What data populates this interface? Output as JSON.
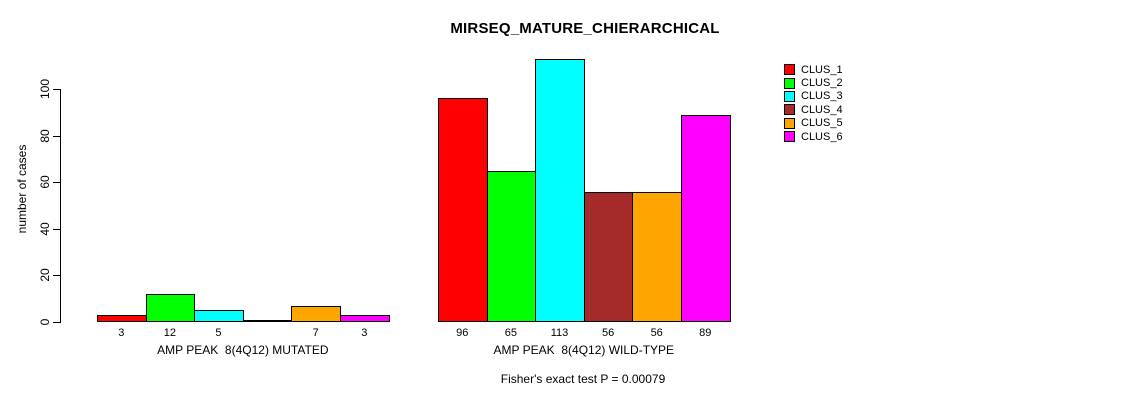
{
  "chart_data": {
    "type": "bar",
    "title": "MIRSEQ_MATURE_CHIERARCHICAL",
    "ylabel": "number of cases",
    "xlabel": "",
    "ylim": [
      0,
      113
    ],
    "yticks": [
      0,
      20,
      40,
      60,
      80,
      100
    ],
    "grid": false,
    "legend_position": "top-right",
    "categories": [
      "AMP PEAK  8(4Q12) MUTATED",
      "AMP PEAK  8(4Q12) WILD-TYPE"
    ],
    "series": [
      {
        "name": "CLUS_1",
        "color": "#FF0000",
        "values": [
          3,
          96
        ]
      },
      {
        "name": "CLUS_2",
        "color": "#00FF00",
        "values": [
          12,
          65
        ]
      },
      {
        "name": "CLUS_3",
        "color": "#00FFFF",
        "values": [
          5,
          113
        ]
      },
      {
        "name": "CLUS_4",
        "color": "#A52A2A",
        "values": [
          0,
          56
        ]
      },
      {
        "name": "CLUS_5",
        "color": "#FFA500",
        "values": [
          7,
          56
        ]
      },
      {
        "name": "CLUS_6",
        "color": "#FF00FF",
        "values": [
          3,
          89
        ]
      }
    ],
    "bar_value_labels": [
      [
        "3",
        "12",
        "5",
        "",
        "7",
        "3"
      ],
      [
        "96",
        "65",
        "113",
        "56",
        "56",
        "89"
      ]
    ],
    "footnote": "Fisher's exact test P = 0.00079",
    "axis_color": "#000000",
    "background_color": "#FFFFFF"
  }
}
